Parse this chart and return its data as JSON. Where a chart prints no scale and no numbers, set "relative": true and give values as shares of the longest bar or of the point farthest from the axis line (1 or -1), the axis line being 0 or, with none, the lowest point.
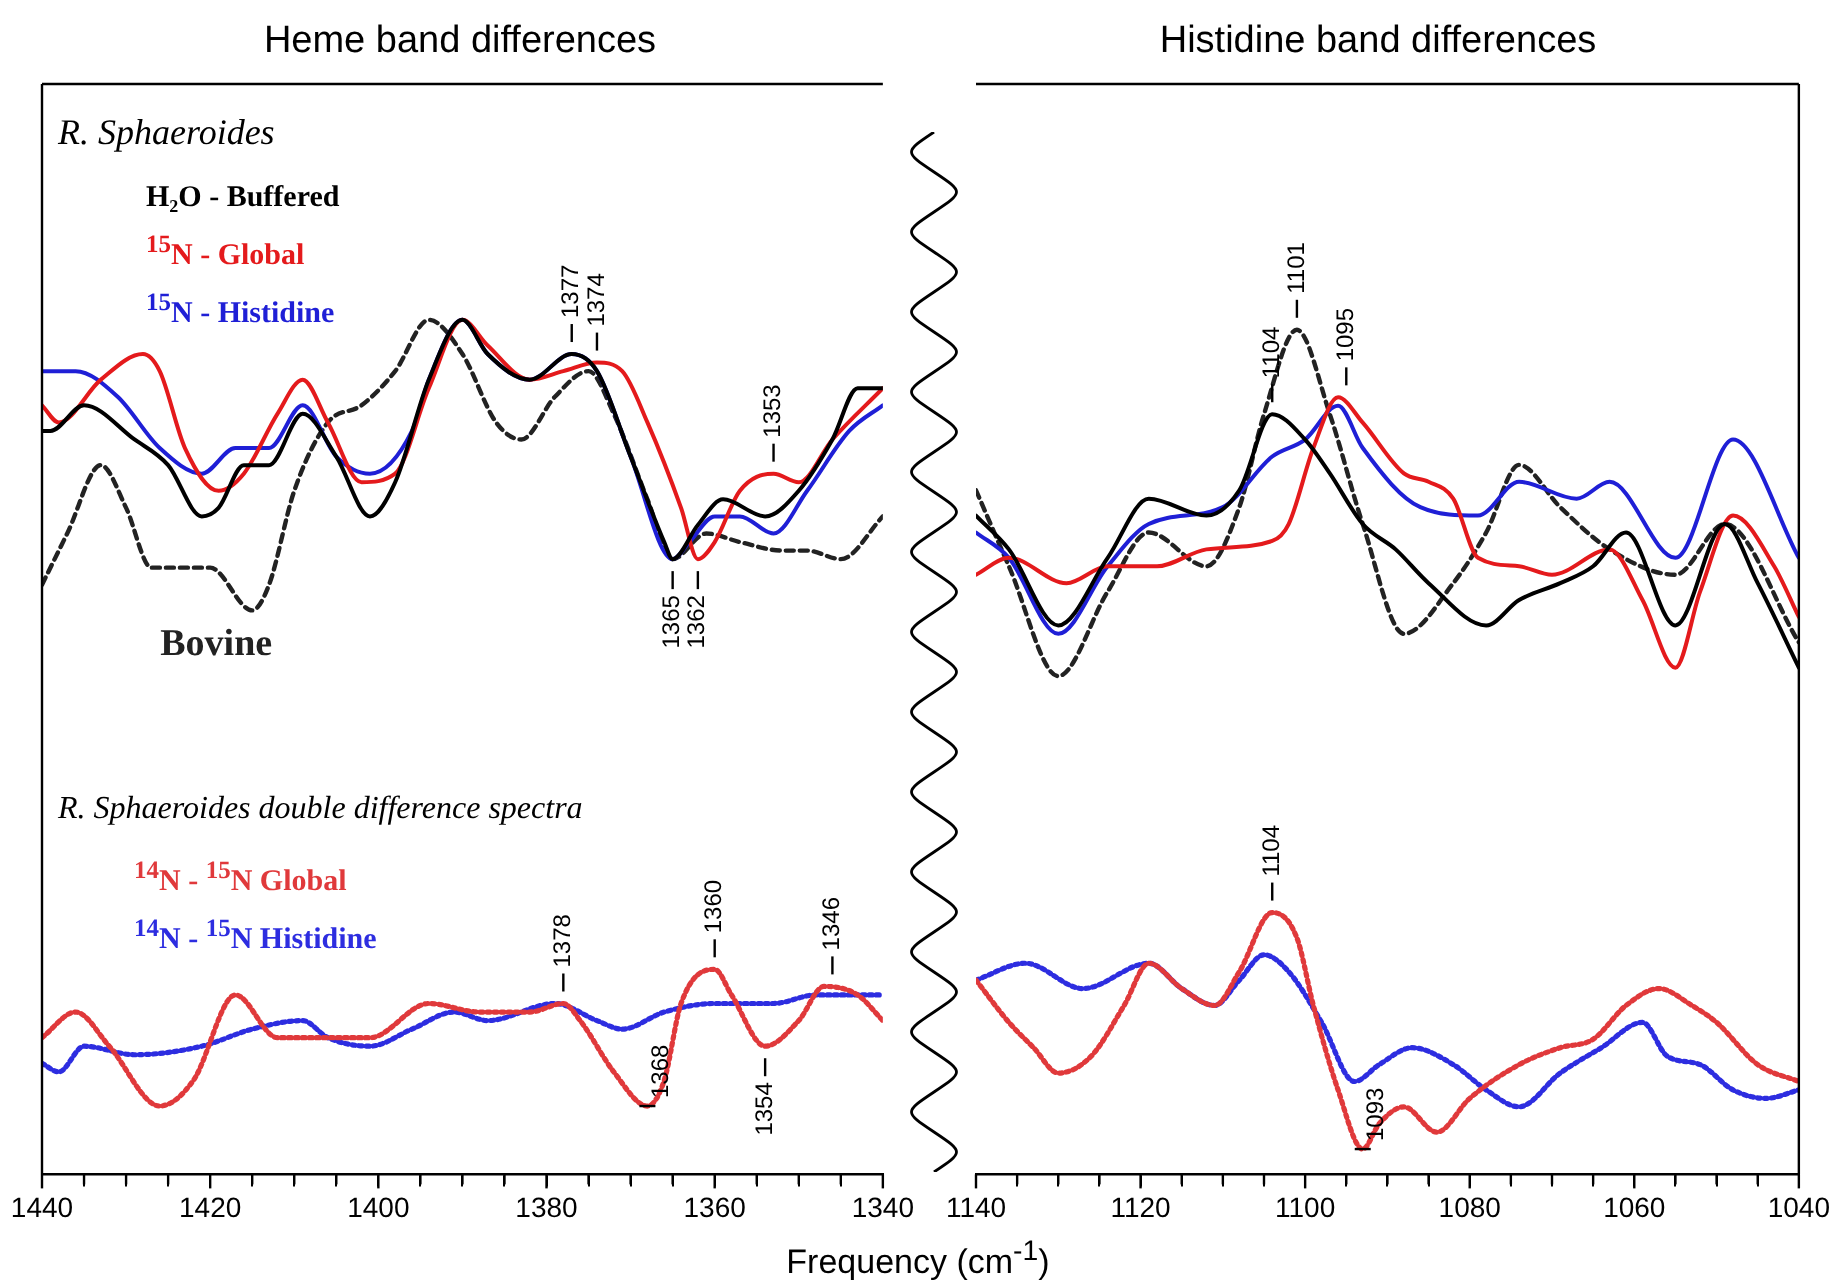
{
  "chart_data": [
    {
      "type": "line",
      "title": "Heme band differences",
      "xlabel": "Frequency (cm$^{-1}$)",
      "relative": true,
      "xlim": [
        1440,
        1340
      ],
      "xticks": [
        1440,
        {
          "value": 1435,
          "label": null
        },
        {
          "value": 1430,
          "label": null
        },
        {
          "value": 1425,
          "label": null
        },
        1420,
        {
          "value": 1415,
          "label": null
        },
        {
          "value": 1410,
          "label": null
        },
        {
          "value": 1405,
          "label": null
        },
        1400,
        {
          "value": 1395,
          "label": null
        },
        {
          "value": 1390,
          "label": null
        },
        {
          "value": 1385,
          "label": null
        },
        1380,
        {
          "value": 1375,
          "label": null
        },
        {
          "value": 1370,
          "label": null
        },
        {
          "value": 1365,
          "label": null
        },
        1360,
        {
          "value": 1355,
          "label": null
        },
        {
          "value": 1350,
          "label": null
        },
        {
          "value": 1345,
          "label": null
        },
        1340
      ],
      "tick_labels": "x",
      "grid": false,
      "legend": "top left",
      "marker": "none",
      "annotations": [
        "R. Sphaeroides",
        "R. Sphaeroides double difference spectra",
        {
          "text": "1377",
          "x": 1377,
          "y": 0.96
        },
        {
          "text": "1374",
          "x": 1374,
          "y": 0.95
        },
        {
          "text": "1353",
          "x": 1353,
          "y": 0.82
        },
        {
          "text": "1365",
          "x": 1365,
          "y": 0.72
        },
        {
          "text": "1362",
          "x": 1362,
          "y": 0.72
        },
        {
          "text": "1378",
          "x": 1378,
          "y": 0.2
        },
        {
          "text": "1360",
          "x": 1360,
          "y": 0.24
        },
        {
          "text": "1346",
          "x": 1346,
          "y": 0.22
        },
        {
          "text": "1368",
          "x": 1368,
          "y": 0.08
        },
        {
          "text": "1354",
          "x": 1354,
          "y": 0.15
        }
      ],
      "series": [
        {
          "name": "H₂O - Buffered",
          "color": "#000000",
          "line_style": "solid",
          "x": [
            1440,
            1439,
            1435,
            1429,
            1425,
            1421,
            1419,
            1416,
            1413,
            1409,
            1405,
            1401,
            1398,
            1394,
            1390,
            1387,
            1382,
            1377,
            1374,
            1370,
            1366,
            1365,
            1362,
            1359,
            1354,
            1350,
            1346,
            1343,
            1340
          ],
          "values": [
            0.87,
            0.87,
            0.9,
            0.86,
            0.83,
            0.77,
            0.78,
            0.83,
            0.83,
            0.89,
            0.84,
            0.77,
            0.81,
            0.93,
            1.0,
            0.96,
            0.93,
            0.96,
            0.94,
            0.84,
            0.74,
            0.72,
            0.76,
            0.79,
            0.77,
            0.8,
            0.86,
            0.92,
            0.92
          ]
        },
        {
          "name": "$^{15}$N - Global",
          "color": "#e41a1c",
          "line_style": "solid",
          "x": [
            1440,
            1438,
            1433,
            1428,
            1426,
            1423,
            1419,
            1416,
            1412,
            1409,
            1406,
            1402,
            1398,
            1394,
            1390,
            1387,
            1382,
            1378,
            1374,
            1371,
            1368,
            1364,
            1362,
            1360,
            1357,
            1353,
            1350,
            1346,
            1340
          ],
          "values": [
            0.9,
            0.88,
            0.93,
            0.96,
            0.94,
            0.85,
            0.8,
            0.82,
            0.89,
            0.93,
            0.88,
            0.81,
            0.82,
            0.92,
            1.0,
            0.97,
            0.93,
            0.94,
            0.95,
            0.94,
            0.88,
            0.78,
            0.72,
            0.74,
            0.8,
            0.82,
            0.81,
            0.86,
            0.92
          ]
        },
        {
          "name": "$^{15}$N - Histidine",
          "color": "#1f1fd6",
          "line_style": "solid",
          "x": [
            1440,
            1436,
            1431,
            1426,
            1421,
            1417,
            1413,
            1409,
            1405,
            1401,
            1396,
            1394,
            1390,
            1387,
            1382,
            1377,
            1374,
            1370,
            1365,
            1363,
            1360,
            1357,
            1353,
            1349,
            1344,
            1340
          ],
          "values": [
            0.94,
            0.94,
            0.91,
            0.85,
            0.82,
            0.85,
            0.85,
            0.9,
            0.84,
            0.82,
            0.87,
            0.93,
            1.0,
            0.96,
            0.93,
            0.96,
            0.94,
            0.84,
            0.72,
            0.74,
            0.77,
            0.77,
            0.75,
            0.8,
            0.87,
            0.9
          ]
        },
        {
          "name": "Bovine",
          "color": "#222222",
          "line_style": "dashed",
          "x": [
            1440,
            1437,
            1433,
            1430,
            1427,
            1424,
            1420,
            1415,
            1413,
            1410,
            1406,
            1402,
            1398,
            1394,
            1390,
            1386,
            1383,
            1379,
            1375,
            1372,
            1368,
            1365,
            1361,
            1357,
            1352,
            1349,
            1345,
            1340
          ],
          "values": [
            0.69,
            0.75,
            0.83,
            0.78,
            0.71,
            0.71,
            0.71,
            0.66,
            0.69,
            0.8,
            0.88,
            0.9,
            0.94,
            1.0,
            0.96,
            0.88,
            0.86,
            0.91,
            0.94,
            0.89,
            0.79,
            0.72,
            0.75,
            0.74,
            0.73,
            0.73,
            0.72,
            0.77
          ]
        },
        {
          "name": "$^{14}$N - $^{15}$N Global",
          "color": "#e0393b",
          "line_style": "dotted",
          "x": [
            1440,
            1436,
            1432,
            1426,
            1422,
            1417,
            1412,
            1406,
            1401,
            1394,
            1388,
            1382,
            1378,
            1376,
            1372,
            1368,
            1366,
            1364,
            1360,
            1358,
            1354,
            1350,
            1347,
            1343,
            1340
          ],
          "values": [
            0.16,
            0.19,
            0.15,
            0.08,
            0.11,
            0.21,
            0.16,
            0.16,
            0.16,
            0.2,
            0.19,
            0.19,
            0.2,
            0.18,
            0.12,
            0.08,
            0.11,
            0.2,
            0.24,
            0.21,
            0.15,
            0.18,
            0.22,
            0.21,
            0.18
          ]
        },
        {
          "name": "$^{14}$N - $^{15}$N Histidine",
          "color": "#2d2de0",
          "line_style": "dotted",
          "x": [
            1440,
            1438,
            1435,
            1429,
            1421,
            1415,
            1409,
            1406,
            1401,
            1396,
            1391,
            1387,
            1379,
            1374,
            1371,
            1366,
            1360,
            1353,
            1348,
            1344,
            1340
          ],
          "values": [
            0.13,
            0.12,
            0.15,
            0.14,
            0.15,
            0.17,
            0.18,
            0.16,
            0.15,
            0.17,
            0.19,
            0.18,
            0.2,
            0.18,
            0.17,
            0.19,
            0.2,
            0.2,
            0.21,
            0.21,
            0.21
          ]
        }
      ]
    },
    {
      "type": "line",
      "title": "Histidine band differences",
      "relative": true,
      "xlim": [
        1140,
        1040
      ],
      "xticks": [
        1140,
        {
          "value": 1135,
          "label": null
        },
        {
          "value": 1130,
          "label": null
        },
        {
          "value": 1125,
          "label": null
        },
        1120,
        {
          "value": 1115,
          "label": null
        },
        {
          "value": 1110,
          "label": null
        },
        {
          "value": 1105,
          "label": null
        },
        1100,
        {
          "value": 1095,
          "label": null
        },
        {
          "value": 1090,
          "label": null
        },
        {
          "value": 1085,
          "label": null
        },
        1080,
        {
          "value": 1075,
          "label": null
        },
        {
          "value": 1070,
          "label": null
        },
        {
          "value": 1065,
          "label": null
        },
        1060,
        {
          "value": 1055,
          "label": null
        },
        {
          "value": 1050,
          "label": null
        },
        {
          "value": 1045,
          "label": null
        },
        1040
      ],
      "tick_labels": "x",
      "grid": false,
      "marker": "none",
      "annotations": [
        {
          "text": "1104",
          "x": 1104,
          "y": 0.9
        },
        {
          "text": "1101",
          "x": 1101,
          "y": 1.0
        },
        {
          "text": "1095",
          "x": 1095,
          "y": 0.92
        },
        {
          "text": "1104",
          "x": 1104,
          "y": 0.31
        },
        {
          "text": "1093",
          "x": 1093,
          "y": 0.03
        }
      ],
      "series": [
        {
          "color": "#000000",
          "line_style": "solid",
          "x": [
            1140,
            1136,
            1130,
            1124,
            1119,
            1112,
            1108,
            1104,
            1100,
            1097,
            1093,
            1089,
            1085,
            1078,
            1074,
            1069,
            1065,
            1061,
            1055,
            1049,
            1045,
            1040
          ],
          "values": [
            0.78,
            0.74,
            0.65,
            0.73,
            0.8,
            0.78,
            0.81,
            0.9,
            0.87,
            0.83,
            0.77,
            0.74,
            0.7,
            0.65,
            0.68,
            0.7,
            0.72,
            0.76,
            0.65,
            0.77,
            0.7,
            0.6
          ]
        },
        {
          "color": "#e41a1c",
          "line_style": "solid",
          "x": [
            1140,
            1136,
            1129,
            1124,
            1118,
            1112,
            1104,
            1102,
            1099,
            1096,
            1093,
            1088,
            1085,
            1082,
            1079,
            1074,
            1070,
            1063,
            1059,
            1055,
            1052,
            1048,
            1043,
            1040
          ],
          "values": [
            0.71,
            0.73,
            0.7,
            0.72,
            0.72,
            0.74,
            0.75,
            0.77,
            0.86,
            0.92,
            0.89,
            0.83,
            0.82,
            0.8,
            0.73,
            0.72,
            0.71,
            0.74,
            0.68,
            0.6,
            0.69,
            0.78,
            0.72,
            0.66
          ]
        },
        {
          "color": "#1f1fd6",
          "line_style": "solid",
          "x": [
            1140,
            1136,
            1130,
            1124,
            1119,
            1110,
            1104,
            1100,
            1096,
            1093,
            1086,
            1079,
            1074,
            1067,
            1063,
            1055,
            1048,
            1040
          ],
          "values": [
            0.76,
            0.73,
            0.64,
            0.72,
            0.77,
            0.79,
            0.85,
            0.87,
            0.91,
            0.86,
            0.79,
            0.78,
            0.82,
            0.8,
            0.82,
            0.73,
            0.87,
            0.73
          ]
        },
        {
          "color": "#222222",
          "line_style": "dashed",
          "x": [
            1140,
            1136,
            1130,
            1124,
            1119,
            1112,
            1108,
            1105,
            1101,
            1097,
            1093,
            1088,
            1082,
            1078,
            1074,
            1069,
            1063,
            1055,
            1049,
            1040
          ],
          "values": [
            0.81,
            0.72,
            0.59,
            0.69,
            0.76,
            0.72,
            0.79,
            0.9,
            1.0,
            0.9,
            0.77,
            0.64,
            0.7,
            0.76,
            0.84,
            0.79,
            0.74,
            0.71,
            0.77,
            0.63
          ]
        },
        {
          "color": "#e0393b",
          "line_style": "dotted",
          "x": [
            1140,
            1136,
            1133,
            1130,
            1126,
            1122,
            1119,
            1115,
            1111,
            1108,
            1104,
            1101,
            1099,
            1096,
            1093,
            1091,
            1088,
            1084,
            1080,
            1074,
            1069,
            1065,
            1061,
            1057,
            1053,
            1050,
            1045,
            1040
          ],
          "values": [
            0.23,
            0.18,
            0.15,
            0.12,
            0.14,
            0.2,
            0.25,
            0.22,
            0.2,
            0.24,
            0.31,
            0.28,
            0.2,
            0.1,
            0.03,
            0.06,
            0.08,
            0.05,
            0.09,
            0.13,
            0.15,
            0.16,
            0.2,
            0.22,
            0.2,
            0.18,
            0.13,
            0.11
          ]
        },
        {
          "color": "#2d2de0",
          "line_style": "dotted",
          "x": [
            1140,
            1134,
            1127,
            1119,
            1115,
            1111,
            1108,
            1105,
            1102,
            1098,
            1094,
            1091,
            1087,
            1082,
            1078,
            1074,
            1069,
            1064,
            1059,
            1056,
            1052,
            1048,
            1044,
            1040
          ],
          "values": [
            0.23,
            0.25,
            0.22,
            0.25,
            0.22,
            0.2,
            0.23,
            0.26,
            0.24,
            0.18,
            0.11,
            0.13,
            0.15,
            0.13,
            0.1,
            0.08,
            0.12,
            0.15,
            0.18,
            0.14,
            0.13,
            0.1,
            0.09,
            0.1
          ]
        }
      ]
    }
  ]
}
